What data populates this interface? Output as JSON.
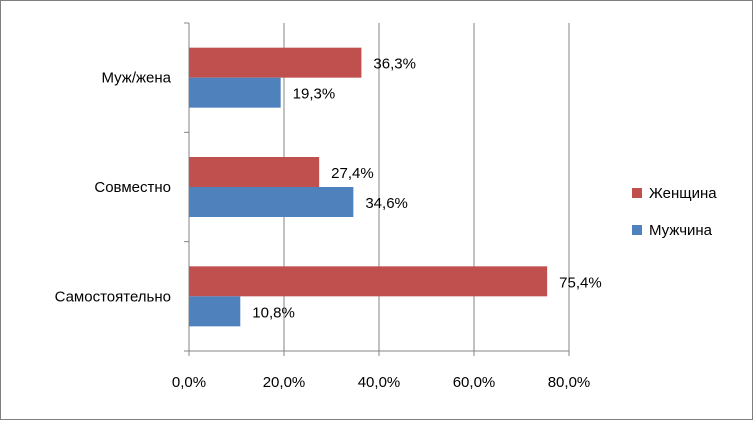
{
  "chart_data": {
    "type": "bar",
    "orientation": "horizontal",
    "categories": [
      "Муж/жена",
      "Совместно",
      "Самостоятельно"
    ],
    "series": [
      {
        "name": "Женщина",
        "color": "#c0504d",
        "values": [
          36.3,
          27.4,
          75.4
        ],
        "labels": [
          "36,3%",
          "27,4%",
          "75,4%"
        ]
      },
      {
        "name": "Мужчина",
        "color": "#4f81bd",
        "values": [
          19.3,
          34.6,
          10.8
        ],
        "labels": [
          "19,3%",
          "34,6%",
          "10,8%"
        ]
      }
    ],
    "xlim": [
      0,
      80
    ],
    "xticks": [
      0,
      20,
      40,
      60,
      80
    ],
    "xtick_labels": [
      "0,0%",
      "20,0%",
      "40,0%",
      "60,0%",
      "80,0%"
    ],
    "grid": true,
    "legend_position": "right"
  }
}
